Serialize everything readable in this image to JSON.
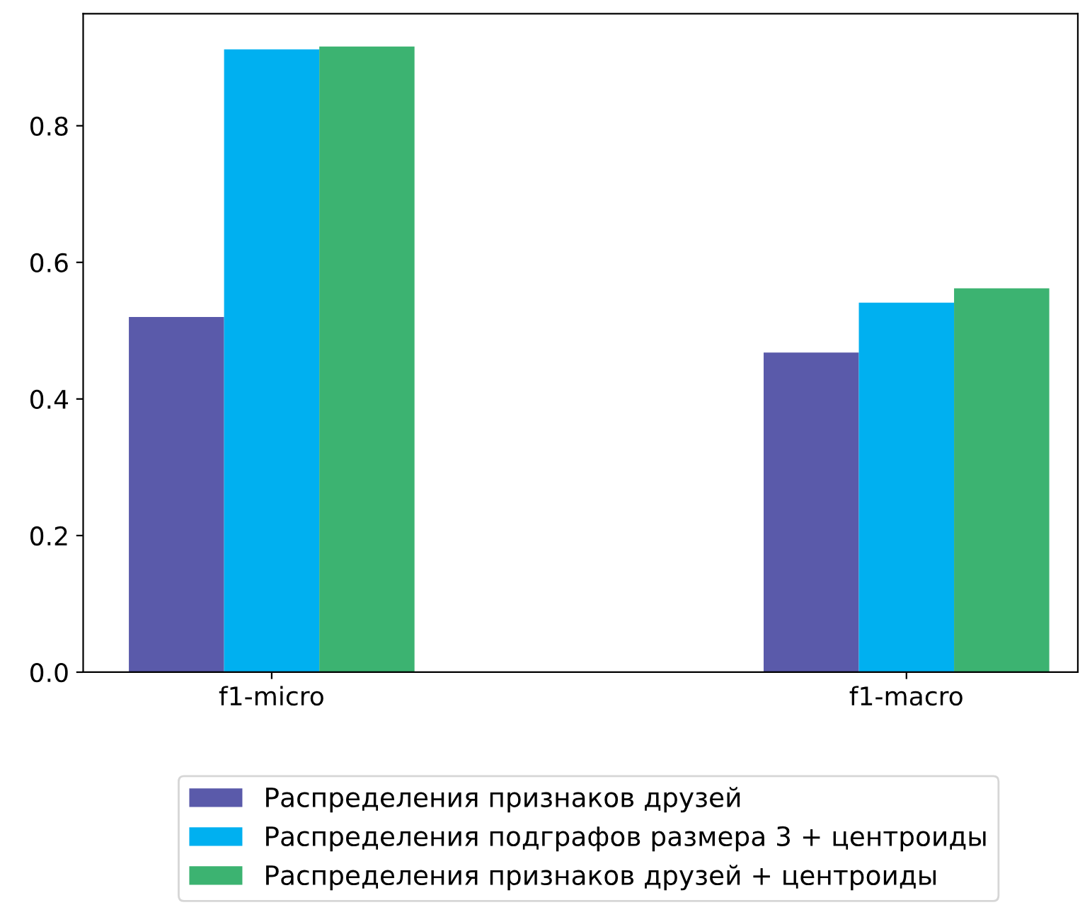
{
  "chart_data": {
    "type": "bar",
    "categories": [
      "f1-micro",
      "f1-macro"
    ],
    "series": [
      {
        "name": "Распределения признаков друзей",
        "color": "#5a5aaa",
        "values": [
          0.52,
          0.468
        ]
      },
      {
        "name": "Распределения подграфов размера 3 + центроиды",
        "color": "#00b0f0",
        "values": [
          0.912,
          0.541
        ]
      },
      {
        "name": "Распределения признаков друзей + центроиды",
        "color": "#3cb371",
        "values": [
          0.916,
          0.562
        ]
      }
    ],
    "ylim": [
      0,
      0.964
    ],
    "yticks": [
      {
        "value": 0,
        "label": "0.0"
      },
      0.2,
      0.4,
      0.6,
      0.8
    ],
    "grid": false,
    "legend": "bottom"
  }
}
